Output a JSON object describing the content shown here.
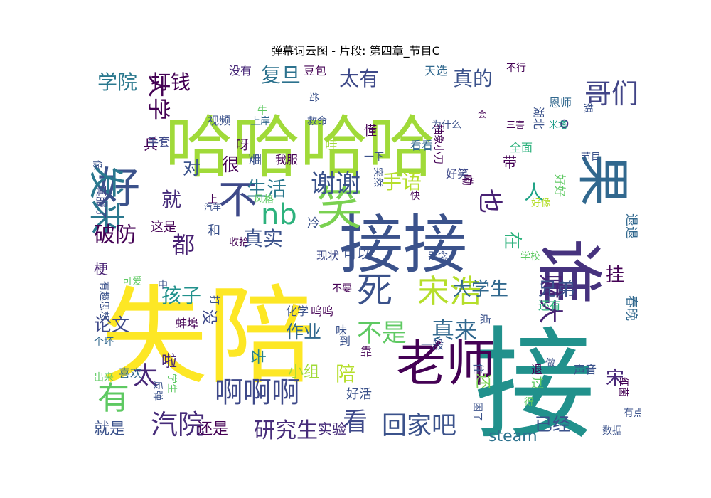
{
  "title": "弹幕词云图 - 片段: 第四章_节目C",
  "words": [
    {
      "text": "失陪",
      "color": "#fde725"
    },
    {
      "text": "接",
      "color": "#21918c"
    },
    {
      "text": "哈哈哈哈",
      "color": "#a0da39"
    },
    {
      "text": "接接",
      "color": "#3b528b"
    },
    {
      "text": "谁",
      "color": "#46327e"
    },
    {
      "text": "老师",
      "color": "#440154"
    },
    {
      "text": "笑",
      "color": "#7ad151"
    },
    {
      "text": "果",
      "color": "#31688e"
    },
    {
      "text": "好",
      "color": "#3b528b"
    },
    {
      "text": "不",
      "color": "#3e4989"
    },
    {
      "text": "发来",
      "color": "#2a788e"
    },
    {
      "text": "死",
      "color": "#3b528b"
    },
    {
      "text": "宋浩",
      "color": "#b5de2b"
    },
    {
      "text": "有",
      "color": "#5ec962"
    },
    {
      "text": "nb",
      "color": "#2db27d"
    },
    {
      "text": "啊啊啊",
      "color": "#3e4989"
    },
    {
      "text": "哥们",
      "color": "#414487"
    },
    {
      "text": "谢谢",
      "color": "#3b528b"
    },
    {
      "text": "大学",
      "color": "#440154"
    },
    {
      "text": "汽院",
      "color": "#472c7a"
    },
    {
      "text": "财大",
      "color": "#482475"
    },
    {
      "text": "也",
      "color": "#482173"
    },
    {
      "text": "回家吧",
      "color": "#3b528b"
    },
    {
      "text": "太",
      "color": "#482878"
    },
    {
      "text": "不是",
      "color": "#5ec962"
    },
    {
      "text": "真来",
      "color": "#31688e"
    },
    {
      "text": "看",
      "color": "#3e4989"
    },
    {
      "text": "生活",
      "color": "#2a788e"
    },
    {
      "text": "都",
      "color": "#482173"
    },
    {
      "text": "人",
      "color": "#20a386"
    },
    {
      "text": "就",
      "color": "#472d7b"
    },
    {
      "text": "手语",
      "color": "#b5de2b"
    },
    {
      "text": "真实",
      "color": "#3b528b"
    },
    {
      "text": "破防",
      "color": "#440154"
    },
    {
      "text": "研究生",
      "color": "#472c7a"
    },
    {
      "text": "大学生",
      "color": "#31688e"
    },
    {
      "text": "兄弟",
      "color": "#3b528b"
    },
    {
      "text": "孩子",
      "color": "#21918c"
    },
    {
      "text": "真的",
      "color": "#3b528b"
    },
    {
      "text": "太有",
      "color": "#3e4989"
    },
    {
      "text": "复旦",
      "color": "#2c728e"
    },
    {
      "text": "打钱",
      "color": "#440154"
    },
    {
      "text": "学院",
      "color": "#2a788e"
    },
    {
      "text": "在",
      "color": "#2db27d"
    },
    {
      "text": "挂",
      "color": "#440154"
    },
    {
      "text": "宋",
      "color": "#482878"
    },
    {
      "text": "陪",
      "color": "#b5de2b"
    },
    {
      "text": "论文",
      "color": "#3e4989"
    },
    {
      "text": "很",
      "color": "#440154"
    },
    {
      "text": "对",
      "color": "#3b528b"
    },
    {
      "text": "作业",
      "color": "#31688e"
    },
    {
      "text": "已经",
      "color": "#3b528b"
    },
    {
      "text": "steam",
      "color": "#2c728e"
    },
    {
      "text": "还",
      "color": "#7ad151"
    },
    {
      "text": "去",
      "color": "#26828e"
    },
    {
      "text": "小组",
      "color": "#a0da39"
    },
    {
      "text": "没",
      "color": "#3e4989"
    },
    {
      "text": "就是",
      "color": "#3b528b"
    },
    {
      "text": "还是",
      "color": "#440154"
    },
    {
      "text": "啦",
      "color": "#482878"
    },
    {
      "text": "梗",
      "color": "#482173"
    },
    {
      "text": "可以",
      "color": "#3b528b"
    },
    {
      "text": "这是",
      "color": "#440154"
    },
    {
      "text": "退退",
      "color": "#31688e"
    },
    {
      "text": "实验",
      "color": "#472c7a"
    },
    {
      "text": "带",
      "color": "#440154"
    },
    {
      "text": "o",
      "color": "#46327e"
    },
    {
      "text": "兵",
      "color": "#440154"
    },
    {
      "text": "冷",
      "color": "#3b528b"
    },
    {
      "text": "过",
      "color": "#5ec962"
    },
    {
      "text": "春晚",
      "color": "#31688e"
    },
    {
      "text": "好活",
      "color": "#3b528b"
    },
    {
      "text": "收拾",
      "color": "#440154"
    },
    {
      "text": "和",
      "color": "#3b528b"
    },
    {
      "text": "现状",
      "color": "#3e4989"
    },
    {
      "text": "没有",
      "color": "#482878"
    },
    {
      "text": "豆包",
      "color": "#440154"
    },
    {
      "text": "天选",
      "color": "#31688e"
    },
    {
      "text": "不行",
      "color": "#440154"
    },
    {
      "text": "湖北",
      "color": "#3b528b"
    },
    {
      "text": "恩师",
      "color": "#31688e"
    },
    {
      "text": "想",
      "color": "#3b528b"
    },
    {
      "text": "米塔",
      "color": "#1f9e89"
    },
    {
      "text": "三害",
      "color": "#440154"
    },
    {
      "text": "为什么",
      "color": "#3b528b"
    },
    {
      "text": "抽象小刀",
      "color": "#440154"
    },
    {
      "text": "全面",
      "color": "#2db27d"
    },
    {
      "text": "好好",
      "color": "#5ec962"
    },
    {
      "text": "节目",
      "color": "#3b528b"
    },
    {
      "text": "视频",
      "color": "#3b528b"
    },
    {
      "text": "上岸",
      "color": "#31688e"
    },
    {
      "text": "救命",
      "color": "#3b528b"
    },
    {
      "text": "懂",
      "color": "#440154"
    },
    {
      "text": "手套",
      "color": "#3e4989"
    },
    {
      "text": "呀",
      "color": "#440154"
    },
    {
      "text": "要",
      "color": "#3b528b"
    },
    {
      "text": "哇",
      "color": "#a0da39"
    },
    {
      "text": "看看",
      "color": "#31688e"
    },
    {
      "text": "我服",
      "color": "#440154"
    },
    {
      "text": "一下",
      "color": "#3b528b"
    },
    {
      "text": "好笑",
      "color": "#3e4989"
    },
    {
      "text": "嘞",
      "color": "#440154"
    },
    {
      "text": "像",
      "color": "#3b528b"
    },
    {
      "text": "真服了",
      "color": "#3e4989"
    },
    {
      "text": "风格",
      "color": "#5ec962"
    },
    {
      "text": "汽车",
      "color": "#3b528b"
    },
    {
      "text": "突然",
      "color": "#3b528b"
    },
    {
      "text": "快",
      "color": "#440154"
    },
    {
      "text": "好像",
      "color": "#b5de2b"
    },
    {
      "text": "别念",
      "color": "#3b528b"
    },
    {
      "text": "学校",
      "color": "#5ec962"
    },
    {
      "text": "不要",
      "color": "#440154"
    },
    {
      "text": "有趣思想",
      "color": "#3b528b"
    },
    {
      "text": "可爱",
      "color": "#5ec962"
    },
    {
      "text": "打",
      "color": "#3b528b"
    },
    {
      "text": "化学",
      "color": "#3b528b"
    },
    {
      "text": "呜呜",
      "color": "#440154"
    },
    {
      "text": "味",
      "color": "#3b528b"
    },
    {
      "text": "点",
      "color": "#3b528b"
    },
    {
      "text": "还有",
      "color": "#2db27d"
    },
    {
      "text": "蚌埠",
      "color": "#440154"
    },
    {
      "text": "到",
      "color": "#3b528b"
    },
    {
      "text": "靠",
      "color": "#440154"
    },
    {
      "text": "一般",
      "color": "#3b528b"
    },
    {
      "text": "个坏",
      "color": "#31688e"
    },
    {
      "text": "做",
      "color": "#3b528b"
    },
    {
      "text": "声音",
      "color": "#3b528b"
    },
    {
      "text": "细菌",
      "color": "#440154"
    },
    {
      "text": "出来",
      "color": "#5ec962"
    },
    {
      "text": "喜欢",
      "color": "#31688e"
    },
    {
      "text": "反弹",
      "color": "#3b528b"
    },
    {
      "text": "学生",
      "color": "#5ec962"
    },
    {
      "text": "住",
      "color": "#3b528b"
    },
    {
      "text": "困了",
      "color": "#3b528b"
    },
    {
      "text": "得",
      "color": "#5ec962"
    },
    {
      "text": "有点",
      "color": "#3b528b"
    },
    {
      "text": "数据",
      "color": "#3b528b"
    },
    {
      "text": "上",
      "color": "#440154"
    },
    {
      "text": "退",
      "color": "#440154"
    },
    {
      "text": "中",
      "color": "#3b528b"
    },
    {
      "text": "牛",
      "color": "#5ec962"
    },
    {
      "text": "给",
      "color": "#3b528b"
    },
    {
      "text": "会",
      "color": "#440154"
    },
    {
      "text": "真是",
      "color": "#3b528b"
    },
    {
      "text": "6",
      "color": "#a0da39"
    }
  ]
}
